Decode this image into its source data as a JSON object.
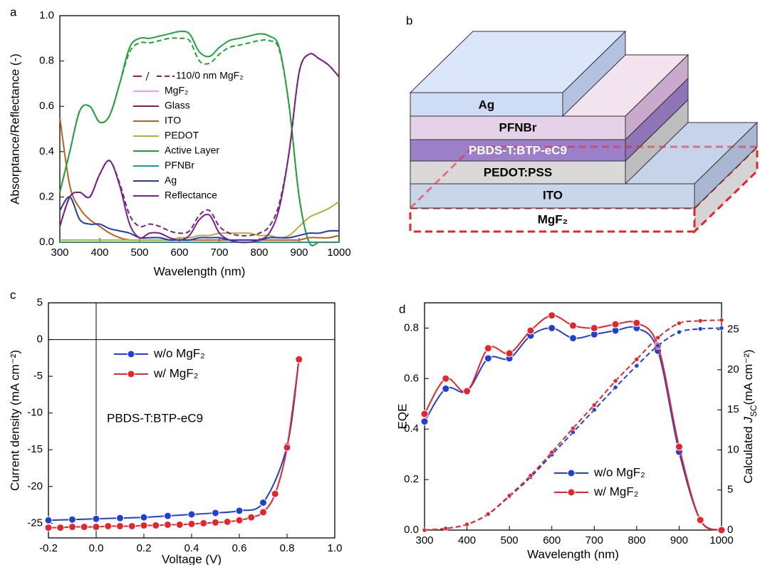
{
  "chart_data": [
    {
      "type": "line",
      "panel_label": "a",
      "xlabel": "Wavelength (nm)",
      "ylabel": "Absorptance/Reflectance (-)",
      "legend_note": "110/0 nm MgF₂",
      "legend_note_color": "#8b1a5e",
      "xlim": [
        300,
        1000
      ],
      "ylim": [
        0,
        1.0
      ],
      "xticks": [
        300,
        400,
        500,
        600,
        700,
        800,
        900,
        1000
      ],
      "yticks": [
        {
          "value": 0,
          "label": "0.0"
        },
        0.2,
        0.4,
        0.6,
        0.8,
        {
          "value": 1,
          "label": "1.0"
        }
      ],
      "x": [
        300,
        325,
        350,
        375,
        400,
        425,
        450,
        475,
        500,
        525,
        550,
        575,
        600,
        625,
        650,
        675,
        700,
        725,
        750,
        775,
        800,
        825,
        850,
        875,
        900,
        925,
        950,
        975,
        1000
      ],
      "series": [
        {
          "name": "MgF₂",
          "color": "#f09cf0",
          "values": [
            0,
            0,
            0,
            0,
            0,
            0,
            0,
            0,
            0,
            0,
            0,
            0,
            0,
            0,
            0,
            0,
            0,
            0,
            0,
            0,
            0,
            0,
            0,
            0,
            0,
            0,
            0,
            0,
            0
          ]
        },
        {
          "name": "Glass",
          "color": "#8b1a5e",
          "values": [
            0,
            0,
            0,
            0,
            0,
            0,
            0,
            0,
            0,
            0,
            0,
            0,
            0,
            0,
            0,
            0,
            0,
            0,
            0,
            0,
            0,
            0,
            0,
            0,
            0,
            0,
            0,
            0,
            0
          ]
        },
        {
          "name": "ITO",
          "color": "#c0601a",
          "values": [
            0.55,
            0.25,
            0.15,
            0.1,
            0.07,
            0.04,
            0.02,
            0.01,
            0.01,
            0.01,
            0.01,
            0.01,
            0.01,
            0.01,
            0.01,
            0.01,
            0.01,
            0.01,
            0.01,
            0.01,
            0.01,
            0.01,
            0.01,
            0.01,
            0.01,
            0.02,
            0.02,
            0.02,
            0.03
          ]
        },
        {
          "name": "PEDOT",
          "color": "#b5b03a",
          "values": [
            0.01,
            0.01,
            0.01,
            0.01,
            0.01,
            0.01,
            0.01,
            0.01,
            0.01,
            0.01,
            0.01,
            0.01,
            0.02,
            0.02,
            0.03,
            0.03,
            0.04,
            0.04,
            0.04,
            0.04,
            0.03,
            0.03,
            0.02,
            0.03,
            0.07,
            0.11,
            0.13,
            0.15,
            0.18
          ]
        },
        {
          "name": "Active Layer",
          "color": "#1fa33a",
          "values": [
            0.22,
            0.4,
            0.58,
            0.6,
            0.53,
            0.56,
            0.7,
            0.86,
            0.9,
            0.9,
            0.91,
            0.92,
            0.93,
            0.92,
            0.84,
            0.82,
            0.86,
            0.89,
            0.9,
            0.91,
            0.92,
            0.91,
            0.86,
            0.6,
            0.2,
            0,
            0,
            0,
            0
          ]
        },
        {
          "name": "PFNBr",
          "color": "#1a9e8f",
          "values": [
            0,
            0,
            0,
            0,
            0,
            0,
            0,
            0,
            0,
            0,
            0,
            0,
            0,
            0,
            0,
            0,
            0,
            0,
            0,
            0,
            0,
            0,
            0,
            0,
            0,
            0,
            0,
            0,
            0
          ]
        },
        {
          "name": "Ag",
          "color": "#1a3eb0",
          "values": [
            0.14,
            0.2,
            0.1,
            0.08,
            0.08,
            0.06,
            0.05,
            0.04,
            0.02,
            0.02,
            0.02,
            0.01,
            0.01,
            0.01,
            0.02,
            0.02,
            0.02,
            0.01,
            0.01,
            0.01,
            0.01,
            0.02,
            0.02,
            0.02,
            0.03,
            0.04,
            0.04,
            0.05,
            0.05
          ]
        },
        {
          "name": "Reflectance",
          "color": "#7a1f8c",
          "values": [
            0.07,
            0.2,
            0.22,
            0.2,
            0.3,
            0.36,
            0.25,
            0.08,
            0.02,
            0.04,
            0.04,
            0.02,
            0.01,
            0.03,
            0.1,
            0.12,
            0.04,
            0.01,
            0,
            0,
            0.01,
            0.04,
            0.15,
            0.4,
            0.75,
            0.83,
            0.81,
            0.78,
            0.73
          ]
        },
        {
          "color": "#1fa33a",
          "style": "dashed",
          "values": [
            0.22,
            0.4,
            0.58,
            0.6,
            0.53,
            0.56,
            0.7,
            0.84,
            0.88,
            0.88,
            0.89,
            0.9,
            0.9,
            0.89,
            0.8,
            0.79,
            0.83,
            0.86,
            0.87,
            0.88,
            0.89,
            0.89,
            0.85,
            0.6,
            0.2,
            0,
            0,
            0,
            0
          ]
        },
        {
          "color": "#7a1f8c",
          "style": "dashed",
          "values": [
            0.07,
            0.2,
            0.22,
            0.2,
            0.3,
            0.36,
            0.26,
            0.12,
            0.07,
            0.08,
            0.07,
            0.05,
            0.04,
            0.05,
            0.12,
            0.14,
            0.07,
            0.04,
            0.03,
            0.03,
            0.04,
            0.07,
            0.17,
            0.4,
            0.75,
            0.83,
            0.81,
            0.78,
            0.73
          ]
        }
      ]
    },
    {
      "type": "line",
      "panel_label": "c",
      "xlabel": "Voltage (V)",
      "ylabel": "Current density (mA cm⁻²)",
      "annotation": "PBDS-T:BTP-eC9",
      "zero_lines": true,
      "xlim": [
        -0.2,
        1.0
      ],
      "ylim": [
        -27,
        5
      ],
      "xticks": [
        -0.2,
        {
          "value": 0,
          "label": "0.0"
        },
        0.2,
        0.4,
        0.6,
        0.8,
        {
          "value": 1,
          "label": "1.0"
        }
      ],
      "yticks": [
        -25,
        -20,
        -15,
        -10,
        -5,
        0,
        5
      ],
      "series": [
        {
          "name": "w/o MgF₂",
          "color": "#1f3fd6",
          "marker": true,
          "x": [
            -0.2,
            -0.1,
            0,
            0.1,
            0.2,
            0.3,
            0.4,
            0.5,
            0.6,
            0.7,
            0.8,
            0.85
          ],
          "values": [
            -24.6,
            -24.5,
            -24.4,
            -24.3,
            -24.2,
            -24.0,
            -23.8,
            -23.6,
            -23.3,
            -22.2,
            -14.5,
            -2.6
          ]
        },
        {
          "name": "w/ MgF₂",
          "color": "#e8232a",
          "marker": true,
          "x": [
            -0.2,
            -0.15,
            -0.1,
            -0.05,
            0,
            0.05,
            0.1,
            0.15,
            0.2,
            0.25,
            0.3,
            0.35,
            0.4,
            0.45,
            0.5,
            0.55,
            0.6,
            0.65,
            0.7,
            0.75,
            0.8,
            0.85
          ],
          "values": [
            -25.6,
            -25.6,
            -25.5,
            -25.5,
            -25.5,
            -25.4,
            -25.4,
            -25.4,
            -25.3,
            -25.3,
            -25.2,
            -25.2,
            -25.1,
            -25.0,
            -24.9,
            -24.8,
            -24.6,
            -24.2,
            -23.5,
            -21.0,
            -14.7,
            -2.7
          ]
        }
      ]
    },
    {
      "type": "line",
      "panel_label": "d",
      "xlabel": "Wavelength (nm)",
      "ylabel": "EQE",
      "y2label": [
        "Calculated ",
        "J",
        "SC",
        "(mA cm⁻²)"
      ],
      "xlim": [
        300,
        1000
      ],
      "ylim": [
        0,
        0.9
      ],
      "y2lim": [
        0,
        28.35
      ],
      "xticks": [
        300,
        400,
        500,
        600,
        700,
        800,
        900,
        1000
      ],
      "yticks": [
        {
          "value": 0,
          "label": "0.0"
        },
        0.2,
        0.4,
        0.6,
        0.8
      ],
      "y2ticks": [
        0,
        5,
        10,
        15,
        20,
        25
      ],
      "x": [
        300,
        350,
        400,
        450,
        500,
        550,
        600,
        650,
        700,
        750,
        800,
        850,
        900,
        950,
        1000
      ],
      "series": [
        {
          "name": "w/o MgF₂",
          "color": "#1f3fd6",
          "marker": true,
          "values": [
            0.43,
            0.56,
            0.55,
            0.68,
            0.68,
            0.77,
            0.8,
            0.76,
            0.775,
            0.79,
            0.8,
            0.71,
            0.31,
            0.04,
            0
          ]
        },
        {
          "name": "w/ MgF₂",
          "color": "#e8232a",
          "marker": true,
          "values": [
            0.46,
            0.6,
            0.55,
            0.72,
            0.7,
            0.79,
            0.85,
            0.81,
            0.8,
            0.815,
            0.82,
            0.73,
            0.33,
            0.04,
            0
          ]
        },
        {
          "color": "#1f3fd6",
          "marker": true,
          "style": "dashed",
          "axis": "y2",
          "values": [
            0,
            0.2,
            0.7,
            2.0,
            4.2,
            6.6,
            9.4,
            12.2,
            15.0,
            17.8,
            20.5,
            23.0,
            24.7,
            25.1,
            25.2
          ]
        },
        {
          "color": "#e8232a",
          "marker": true,
          "style": "dashed",
          "axis": "y2",
          "values": [
            0,
            0.2,
            0.7,
            2.0,
            4.3,
            6.8,
            9.7,
            12.7,
            15.6,
            18.6,
            21.3,
            24.0,
            25.8,
            26.1,
            26.2
          ]
        }
      ]
    }
  ],
  "diagram": {
    "panel_label": "b",
    "layers": [
      "Ag",
      "PFNBr",
      "PBDS-T:BTP-eC9",
      "PEDOT:PSS",
      "ITO",
      "MgF₂"
    ]
  }
}
